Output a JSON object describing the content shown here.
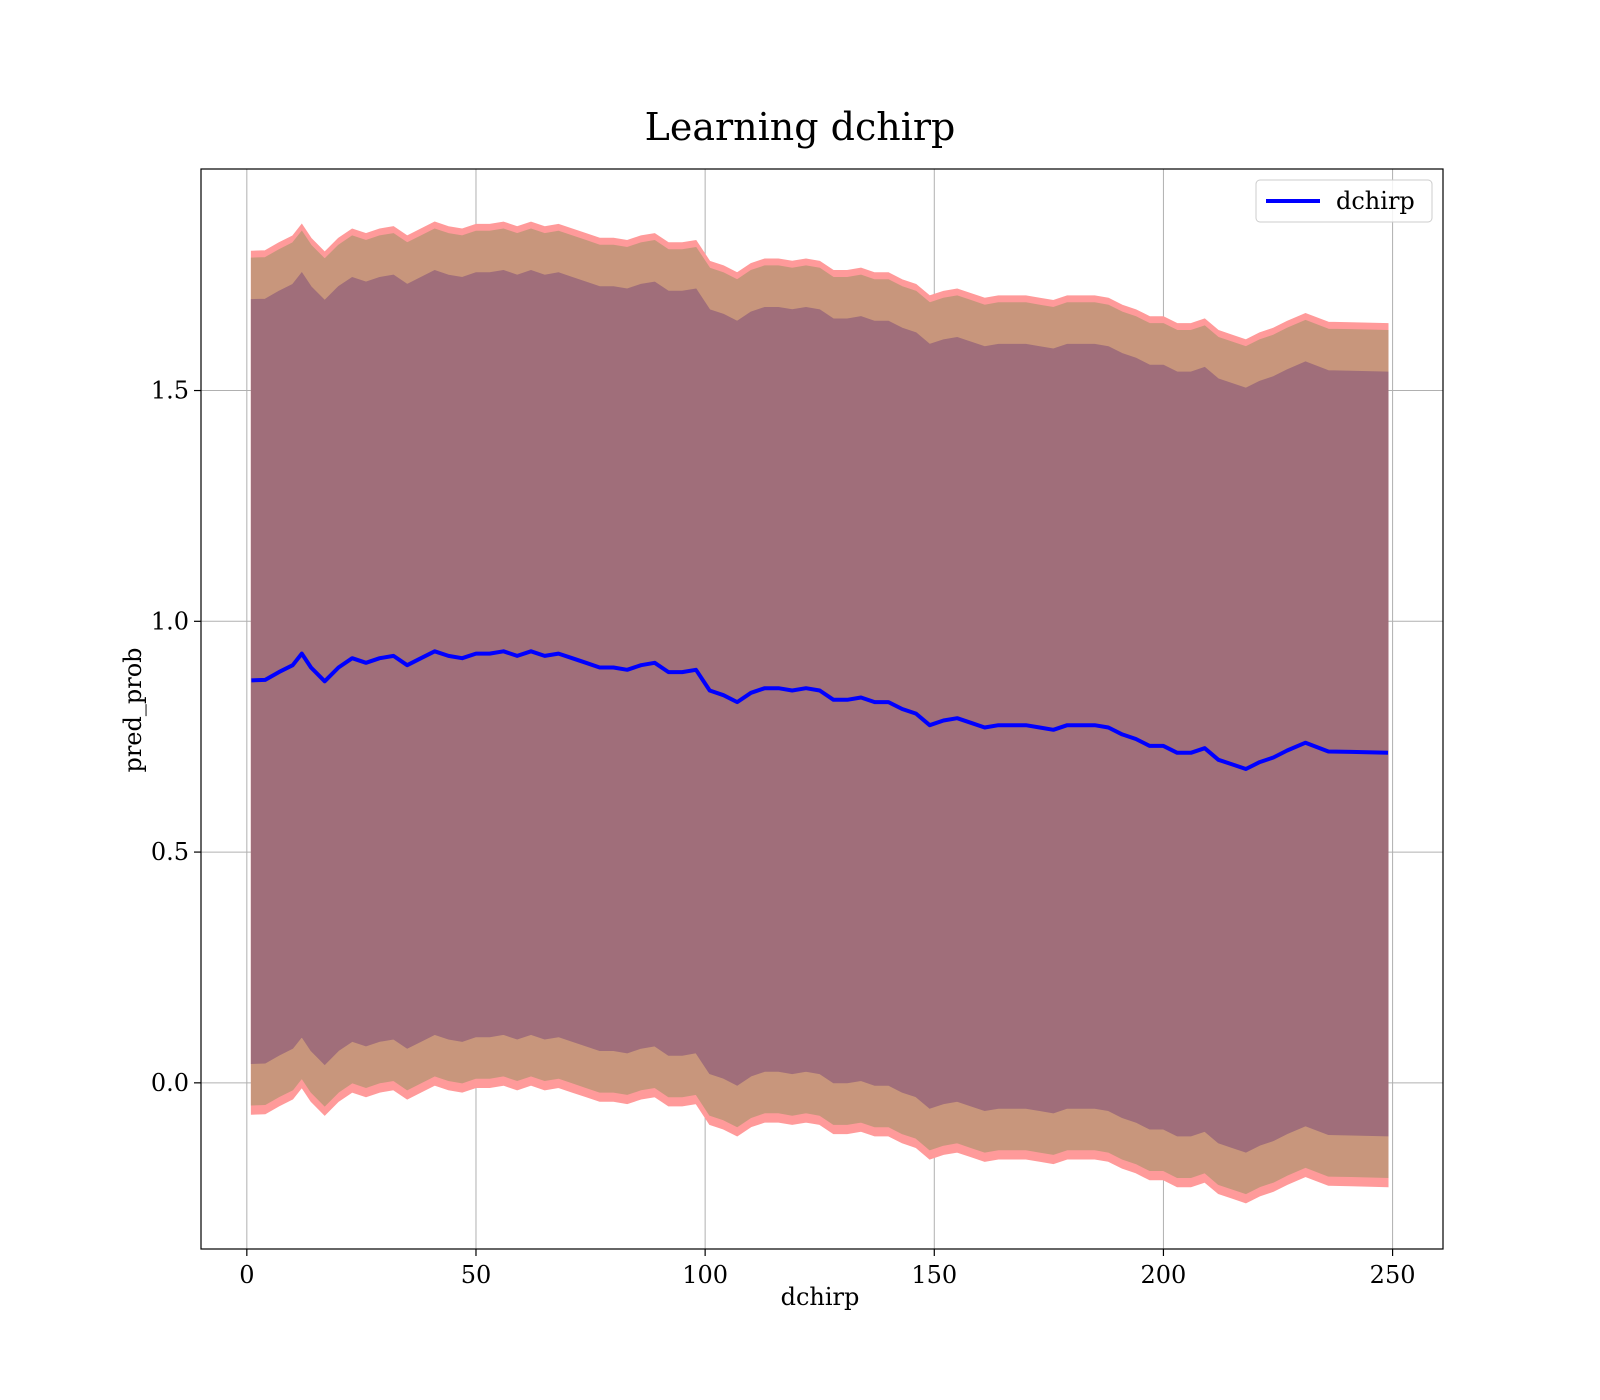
{
  "chart_data": {
    "type": "area",
    "title": "Learning dchirp",
    "xlabel": "dchirp",
    "ylabel": "pred_prob",
    "xlim": [
      -10,
      261
    ],
    "ylim": [
      -0.36,
      1.98
    ],
    "xticks": [
      0,
      50,
      100,
      150,
      200,
      250
    ],
    "yticks": [
      0.0,
      0.5,
      1.0,
      1.5
    ],
    "xtick_labels": [
      "0",
      "50",
      "100",
      "150",
      "200",
      "250"
    ],
    "ytick_labels": [
      "0.0",
      "0.5",
      "1.0",
      "1.5"
    ],
    "grid": true,
    "legend": {
      "position": "top-right",
      "entries": [
        "dchirp"
      ]
    },
    "colors": {
      "line": "#0000ff",
      "outer_band": "#ff9a9a",
      "middle_band": "#c8967c",
      "inner_band": "#a06e7a",
      "grid": "#b0b0b0"
    },
    "series": [
      {
        "name": "dchirp",
        "x": [
          1,
          4,
          7,
          10,
          12,
          14,
          17,
          20,
          23,
          26,
          29,
          32,
          35,
          38,
          41,
          44,
          47,
          50,
          53,
          56,
          59,
          62,
          65,
          68,
          71,
          74,
          77,
          80,
          83,
          86,
          89,
          92,
          95,
          98,
          101,
          104,
          107,
          110,
          113,
          116,
          119,
          122,
          125,
          128,
          131,
          134,
          137,
          140,
          143,
          146,
          149,
          152,
          155,
          158,
          161,
          164,
          167,
          170,
          173,
          176,
          179,
          182,
          185,
          188,
          191,
          194,
          197,
          200,
          203,
          206,
          209,
          212,
          215,
          218,
          221,
          224,
          227,
          231,
          236,
          241,
          249
        ],
        "y": [
          0.872,
          0.873,
          0.89,
          0.905,
          0.93,
          0.9,
          0.87,
          0.9,
          0.92,
          0.91,
          0.92,
          0.925,
          0.905,
          0.92,
          0.935,
          0.925,
          0.92,
          0.93,
          0.93,
          0.935,
          0.925,
          0.935,
          0.925,
          0.93,
          0.92,
          0.91,
          0.9,
          0.9,
          0.895,
          0.905,
          0.91,
          0.89,
          0.89,
          0.895,
          0.85,
          0.84,
          0.825,
          0.845,
          0.855,
          0.855,
          0.85,
          0.855,
          0.85,
          0.83,
          0.83,
          0.835,
          0.825,
          0.825,
          0.81,
          0.8,
          0.775,
          0.785,
          0.79,
          0.78,
          0.77,
          0.775,
          0.775,
          0.775,
          0.77,
          0.765,
          0.775,
          0.775,
          0.775,
          0.77,
          0.755,
          0.745,
          0.73,
          0.73,
          0.715,
          0.715,
          0.725,
          0.7,
          0.69,
          0.68,
          0.695,
          0.705,
          0.72,
          0.737,
          0.718,
          0.717,
          0.715
        ]
      }
    ],
    "bands": [
      {
        "label": "outer",
        "offset_upper": 0.93,
        "offset_lower": -0.94
      },
      {
        "label": "middle",
        "offset_upper": 0.915,
        "offset_lower": -0.92
      },
      {
        "label": "inner",
        "offset_upper": 0.825,
        "offset_lower": -0.83
      }
    ]
  }
}
